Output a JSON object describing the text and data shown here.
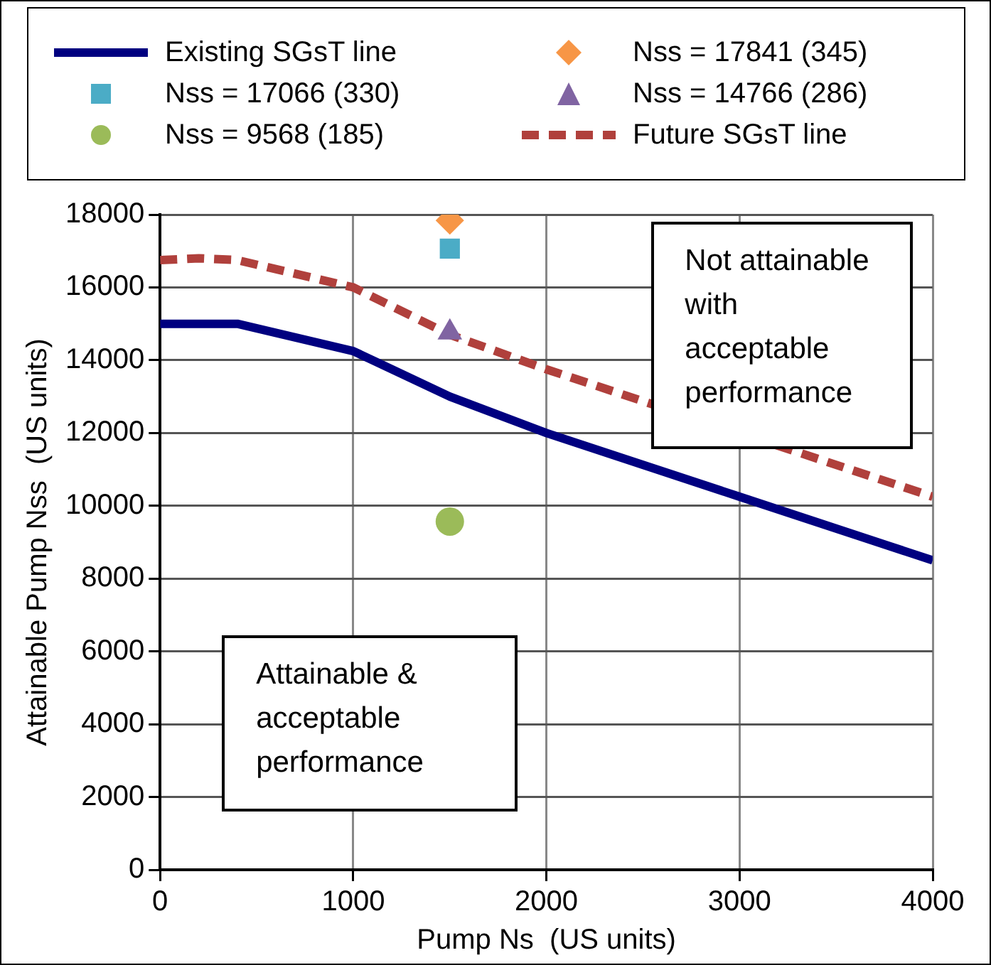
{
  "chart_data": {
    "type": "line",
    "xlabel": "Pump Ns  (US units)",
    "ylabel": "Attainable Pump Nss  (US units)",
    "xlim": [
      0,
      4000
    ],
    "xticks": [
      0,
      1000,
      2000,
      3000,
      4000
    ],
    "ylim": [
      0,
      18000
    ],
    "yticks": [
      0,
      2000,
      4000,
      6000,
      8000,
      10000,
      12000,
      14000,
      16000,
      18000
    ],
    "grid": true,
    "legend": "top",
    "series": [
      {
        "name": "Existing SGsT line",
        "type": "line",
        "color": "#000080",
        "line_style": "solid",
        "marker": "none",
        "x": [
          0,
          400,
          1000,
          1500,
          2000,
          3000,
          4000
        ],
        "values": [
          15000,
          15000,
          14250,
          13000,
          12000,
          10250,
          8500
        ]
      },
      {
        "name": "Nss = 17841 (345)",
        "type": "scatter",
        "color": "#f79646",
        "marker": "diamond",
        "x": [
          1500
        ],
        "values": [
          17841
        ]
      },
      {
        "name": "Nss = 17066 (330)",
        "type": "scatter",
        "color": "#4bacc6",
        "marker": "square",
        "x": [
          1500
        ],
        "values": [
          17066
        ]
      },
      {
        "name": "Nss = 14766 (286)",
        "type": "scatter",
        "color": "#8064a2",
        "marker": "triangle",
        "x": [
          1500
        ],
        "values": [
          14766
        ]
      },
      {
        "name": "Nss = 9568 (185)",
        "type": "scatter",
        "color": "#9bbb59",
        "marker": "circle",
        "x": [
          1500
        ],
        "values": [
          9568
        ]
      },
      {
        "name": "Future SGsT line",
        "type": "line",
        "color": "#b0403c",
        "line_style": "dashed",
        "marker": "none",
        "x": [
          0,
          200,
          400,
          1000,
          1500,
          2000,
          4000
        ],
        "values": [
          16750,
          16800,
          16750,
          16000,
          14700,
          13750,
          10250
        ]
      }
    ],
    "annotations": [
      "Attainable & acceptable performance",
      "Not attainable with acceptable performance"
    ]
  }
}
